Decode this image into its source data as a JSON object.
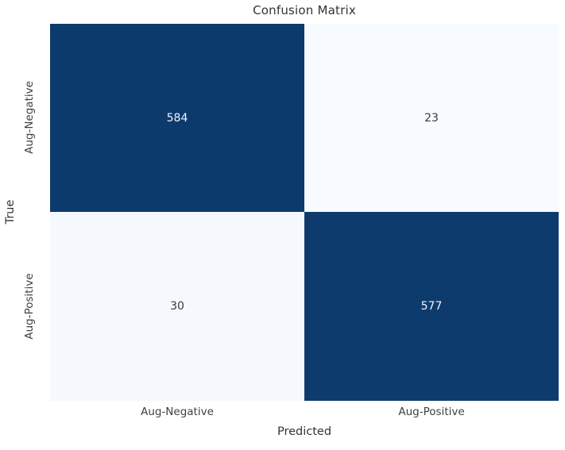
{
  "title": "Confusion Matrix",
  "axes": {
    "xlabel": "Predicted",
    "ylabel": "True"
  },
  "x_ticks": [
    "Aug-Negative",
    "Aug-Positive"
  ],
  "y_ticks": [
    "Aug-Negative",
    "Aug-Positive"
  ],
  "cells": [
    {
      "row": "Aug-Negative",
      "col": "Aug-Negative",
      "value": "584",
      "bg": "#0d3a6d",
      "text_color": "#eef4fa"
    },
    {
      "row": "Aug-Negative",
      "col": "Aug-Positive",
      "value": "23",
      "bg": "#f7fbff",
      "text_color": "#36393d"
    },
    {
      "row": "Aug-Positive",
      "col": "Aug-Negative",
      "value": "30",
      "bg": "#f5f9fd",
      "text_color": "#36393d"
    },
    {
      "row": "Aug-Positive",
      "col": "Aug-Positive",
      "value": "577",
      "bg": "#0e3b6e",
      "text_color": "#eef4fa"
    }
  ],
  "colors": {
    "colormap_high": "#0d3a6d",
    "colormap_low": "#f7fbff",
    "title_text": "#333333",
    "tick_text": "#404040"
  },
  "chart_data": {
    "type": "heatmap",
    "title": "Confusion Matrix",
    "xlabel": "Predicted",
    "ylabel": "True",
    "x_categories": [
      "Aug-Negative",
      "Aug-Positive"
    ],
    "y_categories": [
      "Aug-Negative",
      "Aug-Positive"
    ],
    "values": [
      [
        584,
        23
      ],
      [
        30,
        577
      ]
    ],
    "annotations": true,
    "colormap": "Blues",
    "colorbar": false,
    "legend": "none",
    "grid": false,
    "value_range": [
      23,
      584
    ]
  }
}
